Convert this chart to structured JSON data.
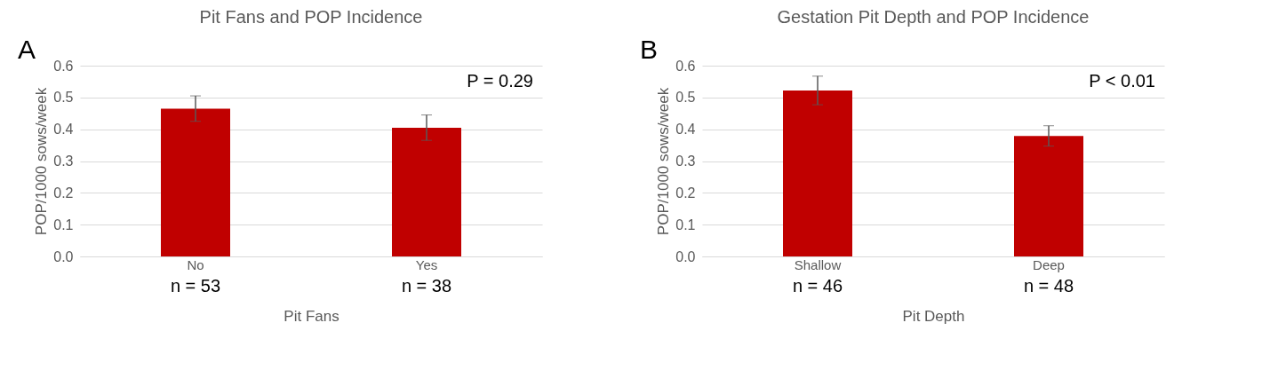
{
  "chart_data": [
    {
      "type": "bar",
      "title": "Pit Fans and POP Incidence",
      "xlabel": "Pit Fans",
      "ylabel": "POP/1000 sows/week",
      "categories": [
        "No",
        "Yes"
      ],
      "values": [
        0.465,
        0.405
      ],
      "errors": [
        0.04,
        0.04
      ],
      "color": "#c00000",
      "ylim": [
        0,
        0.6
      ],
      "yticks": [
        {
          "value": 0,
          "label": "0.0"
        },
        0.1,
        0.2,
        0.3,
        0.4,
        0.5,
        0.6
      ],
      "grid": "y",
      "annotations": [
        "A",
        "P = 0.29",
        "n = 53",
        "n = 38"
      ]
    },
    {
      "type": "bar",
      "title": "Gestation Pit Depth and POP Incidence",
      "xlabel": "Pit Depth",
      "ylabel": "POP/1000 sows/week",
      "categories": [
        "Shallow",
        "Deep"
      ],
      "values": [
        0.522,
        0.379
      ],
      "errors": [
        0.045,
        0.032
      ],
      "color": "#c00000",
      "ylim": [
        0,
        0.6
      ],
      "yticks": [
        {
          "value": 0,
          "label": "0.0"
        },
        0.1,
        0.2,
        0.3,
        0.4,
        0.5,
        0.6
      ],
      "grid": "y",
      "annotations": [
        "B",
        "P < 0.01",
        "n = 46",
        "n = 48"
      ]
    }
  ]
}
